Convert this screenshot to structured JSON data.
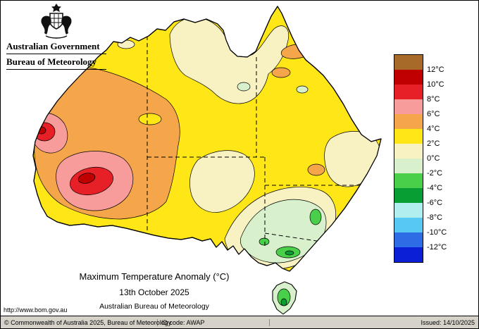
{
  "header": {
    "government": "Australian Government",
    "agency": "Bureau of Meteorology"
  },
  "legend": {
    "unit": "°C",
    "labels": [
      "12°C",
      "10°C",
      "8°C",
      "6°C",
      "4°C",
      "2°C",
      "0°C",
      "-2°C",
      "-4°C",
      "-6°C",
      "-8°C",
      "-10°C",
      "-12°C"
    ],
    "colors": [
      "#a86a28",
      "#c00000",
      "#e62026",
      "#f79b9b",
      "#f5a54a",
      "#ffe616",
      "#f8f1c2",
      "#d8f0cc",
      "#49cf49",
      "#089e33",
      "#b0eef0",
      "#57c8f2",
      "#2e6ce6",
      "#0b1fd4"
    ]
  },
  "titles": {
    "main": "Maximum Temperature Anomaly (°C)",
    "date": "13th October 2025",
    "org": "Australian Bureau of Meteorology"
  },
  "links": {
    "url": "http://www.bom.gov.au"
  },
  "footer": {
    "copyright": "© Commonwealth of Australia 2025, Bureau of Meteorology",
    "id_code": "ID code: AWAP",
    "issued": "Issued: 14/10/2025"
  }
}
